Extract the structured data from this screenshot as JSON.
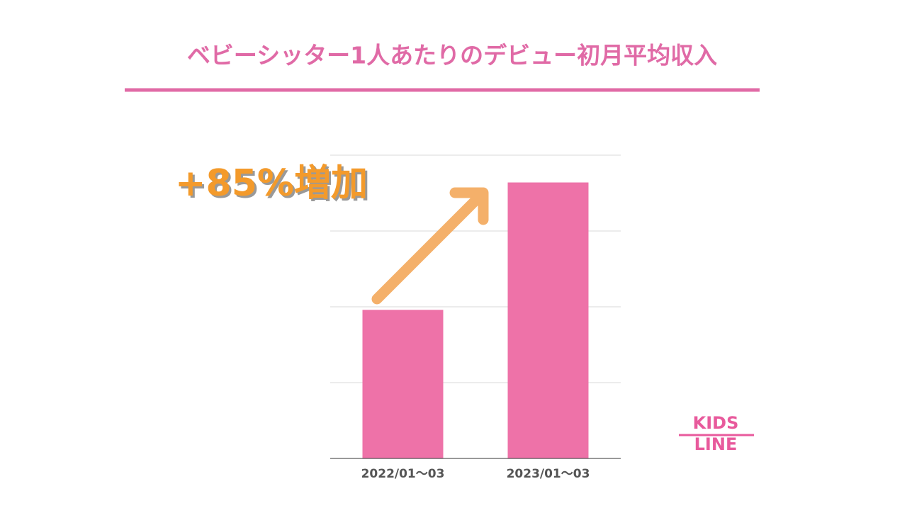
{
  "chart_data": {
    "type": "bar",
    "title": "ベビーシッター1人あたりのデビュー初月平均収入",
    "categories": [
      "2022/01〜03",
      "2023/01〜03"
    ],
    "values": [
      1.96,
      3.64
    ],
    "color": "#ee72a8",
    "ylim": [
      0,
      4
    ],
    "yticks": [
      0,
      1,
      2,
      3,
      4
    ],
    "grid": true,
    "annotation": "+85%増加"
  },
  "logo": {
    "line1": "KIDS",
    "line2": "LINE"
  }
}
